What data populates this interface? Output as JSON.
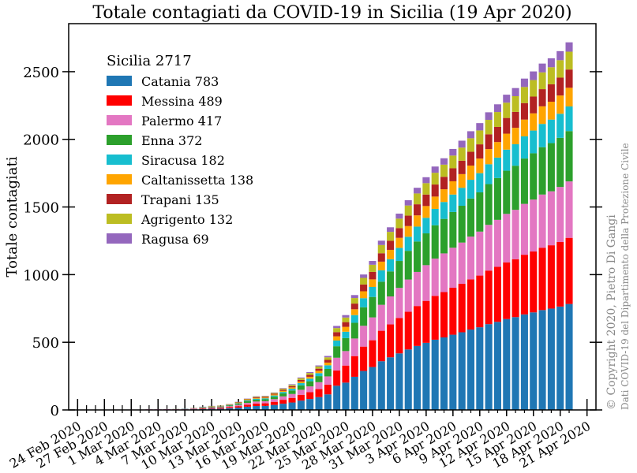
{
  "chart_data": {
    "type": "stacked-bar",
    "title": "Totale contagiati da COVID-19 in Sicilia (19 Apr 2020)",
    "y_label": "Totale contagiati",
    "legend_title": "Sicilia  2717",
    "legend": "upper left",
    "annotations": [
      "© Copyright 2020, Pietro Di Gangi",
      "Dati COVID-19 del Dipartimento della Protezione Civile"
    ],
    "x": [
      "2020-02-24",
      "2020-02-25",
      "2020-02-26",
      "2020-02-27",
      "2020-02-28",
      "2020-02-29",
      "2020-03-01",
      "2020-03-02",
      "2020-03-03",
      "2020-03-04",
      "2020-03-05",
      "2020-03-06",
      "2020-03-07",
      "2020-03-08",
      "2020-03-09",
      "2020-03-10",
      "2020-03-11",
      "2020-03-12",
      "2020-03-13",
      "2020-03-14",
      "2020-03-15",
      "2020-03-16",
      "2020-03-17",
      "2020-03-18",
      "2020-03-19",
      "2020-03-20",
      "2020-03-21",
      "2020-03-22",
      "2020-03-23",
      "2020-03-24",
      "2020-03-25",
      "2020-03-26",
      "2020-03-27",
      "2020-03-28",
      "2020-03-29",
      "2020-03-30",
      "2020-03-31",
      "2020-04-01",
      "2020-04-02",
      "2020-04-03",
      "2020-04-04",
      "2020-04-05",
      "2020-04-06",
      "2020-04-07",
      "2020-04-08",
      "2020-04-09",
      "2020-04-10",
      "2020-04-11",
      "2020-04-12",
      "2020-04-13",
      "2020-04-14",
      "2020-04-15",
      "2020-04-16",
      "2020-04-17",
      "2020-04-18",
      "2020-04-19"
    ],
    "xlim": [
      "2020-02-23",
      "2020-04-22"
    ],
    "xticks": [
      {
        "value": "2020-02-24",
        "label": "24 Feb 2020"
      },
      {
        "value": "2020-02-27",
        "label": "27 Feb 2020"
      },
      {
        "value": "2020-03-01",
        "label": "1 Mar 2020"
      },
      {
        "value": "2020-03-04",
        "label": "4 Mar 2020"
      },
      {
        "value": "2020-03-07",
        "label": "7 Mar 2020"
      },
      {
        "value": "2020-03-10",
        "label": "10 Mar 2020"
      },
      {
        "value": "2020-03-13",
        "label": "13 Mar 2020"
      },
      {
        "value": "2020-03-16",
        "label": "16 Mar 2020"
      },
      {
        "value": "2020-03-19",
        "label": "19 Mar 2020"
      },
      {
        "value": "2020-03-22",
        "label": "22 Mar 2020"
      },
      {
        "value": "2020-03-25",
        "label": "25 Mar 2020"
      },
      {
        "value": "2020-03-28",
        "label": "28 Mar 2020"
      },
      {
        "value": "2020-03-31",
        "label": "31 Mar 2020"
      },
      {
        "value": "2020-04-03",
        "label": "3 Apr 2020"
      },
      {
        "value": "2020-04-06",
        "label": "6 Apr 2020"
      },
      {
        "value": "2020-04-09",
        "label": "9 Apr 2020"
      },
      {
        "value": "2020-04-12",
        "label": "12 Apr 2020"
      },
      {
        "value": "2020-04-15",
        "label": "15 Apr 2020"
      },
      {
        "value": "2020-04-18",
        "label": "18 Apr 2020"
      },
      {
        "value": "2020-04-21",
        "label": "21 Apr 2020"
      }
    ],
    "ylim": [
      0,
      2855
    ],
    "yticks": [
      0,
      500,
      1000,
      1500,
      2000,
      2500
    ],
    "series": [
      {
        "name": "Catania 783",
        "color": "#1f77b4",
        "values": [
          0,
          0,
          0,
          0,
          0,
          0,
          0,
          0,
          2,
          2,
          2,
          3,
          4,
          5,
          7,
          9,
          9,
          13,
          17,
          24,
          29,
          30,
          37,
          46,
          55,
          69,
          81,
          95,
          115,
          179,
          202,
          245,
          288,
          317,
          360,
          389,
          418,
          447,
          473,
          496,
          519,
          536,
          556,
          574,
          594,
          611,
          634,
          651,
          672,
          686,
          706,
          721,
          738,
          749,
          764,
          783
        ]
      },
      {
        "name": "Messina 489",
        "color": "#ff0000",
        "values": [
          0,
          0,
          0,
          0,
          0,
          0,
          0,
          0,
          0,
          0,
          1,
          1,
          1,
          2,
          4,
          5,
          6,
          8,
          11,
          15,
          18,
          19,
          23,
          29,
          34,
          43,
          50,
          59,
          72,
          112,
          126,
          153,
          180,
          198,
          225,
          243,
          261,
          279,
          295,
          310,
          324,
          335,
          347,
          358,
          371,
          382,
          396,
          407,
          419,
          428,
          441,
          450,
          461,
          468,
          477,
          489
        ]
      },
      {
        "name": "Palermo 417",
        "color": "#e377c2",
        "values": [
          0,
          0,
          3,
          3,
          3,
          3,
          3,
          3,
          3,
          3,
          3,
          3,
          3,
          4,
          4,
          5,
          5,
          7,
          9,
          13,
          15,
          16,
          20,
          25,
          29,
          37,
          43,
          51,
          61,
          95,
          107,
          130,
          154,
          169,
          192,
          207,
          223,
          238,
          252,
          264,
          276,
          286,
          296,
          305,
          316,
          325,
          338,
          347,
          358,
          365,
          376,
          384,
          393,
          399,
          407,
          417
        ]
      },
      {
        "name": "Enna 372",
        "color": "#2ca02c",
        "values": [
          0,
          0,
          0,
          0,
          0,
          0,
          0,
          0,
          0,
          0,
          0,
          1,
          1,
          1,
          3,
          4,
          4,
          6,
          8,
          12,
          14,
          14,
          18,
          22,
          26,
          33,
          38,
          45,
          55,
          85,
          96,
          116,
          137,
          151,
          171,
          185,
          199,
          212,
          225,
          235,
          246,
          255,
          264,
          272,
          282,
          290,
          301,
          309,
          319,
          326,
          335,
          342,
          350,
          356,
          363,
          372
        ]
      },
      {
        "name": "Siracusa 182",
        "color": "#17becf",
        "values": [
          0,
          0,
          0,
          0,
          0,
          0,
          0,
          0,
          0,
          0,
          0,
          0,
          1,
          1,
          2,
          2,
          2,
          3,
          4,
          6,
          7,
          7,
          9,
          11,
          13,
          16,
          19,
          22,
          27,
          42,
          47,
          57,
          67,
          74,
          84,
          90,
          97,
          104,
          110,
          115,
          121,
          125,
          129,
          133,
          138,
          142,
          147,
          151,
          156,
          159,
          164,
          168,
          172,
          174,
          178,
          182
        ]
      },
      {
        "name": "Caltanissetta 138",
        "color": "#ffa500",
        "values": [
          0,
          0,
          0,
          0,
          0,
          0,
          0,
          0,
          0,
          0,
          0,
          0,
          0,
          0,
          1,
          2,
          2,
          2,
          3,
          4,
          5,
          5,
          7,
          8,
          10,
          12,
          14,
          17,
          20,
          31,
          36,
          43,
          51,
          56,
          64,
          69,
          74,
          79,
          83,
          87,
          91,
          94,
          98,
          101,
          105,
          108,
          112,
          115,
          118,
          121,
          124,
          127,
          130,
          132,
          135,
          138
        ]
      },
      {
        "name": "Trapani 135",
        "color": "#b22222",
        "values": [
          0,
          0,
          0,
          0,
          0,
          0,
          0,
          0,
          0,
          0,
          0,
          0,
          0,
          1,
          1,
          1,
          2,
          2,
          3,
          4,
          5,
          5,
          6,
          8,
          9,
          12,
          14,
          16,
          20,
          31,
          35,
          42,
          50,
          55,
          62,
          67,
          72,
          77,
          82,
          85,
          89,
          92,
          96,
          99,
          102,
          105,
          109,
          112,
          116,
          118,
          122,
          124,
          127,
          129,
          132,
          135
        ]
      },
      {
        "name": "Agrigento 132",
        "color": "#bcbd22",
        "values": [
          0,
          0,
          0,
          0,
          0,
          0,
          0,
          0,
          0,
          0,
          0,
          0,
          0,
          1,
          1,
          1,
          2,
          2,
          3,
          4,
          5,
          5,
          6,
          8,
          9,
          12,
          14,
          16,
          19,
          30,
          34,
          41,
          49,
          53,
          61,
          66,
          70,
          75,
          80,
          84,
          87,
          90,
          94,
          97,
          100,
          103,
          107,
          110,
          113,
          116,
          119,
          122,
          124,
          126,
          129,
          132
        ]
      },
      {
        "name": "Ragusa 69",
        "color": "#9467bd",
        "values": [
          0,
          0,
          0,
          0,
          0,
          0,
          0,
          0,
          0,
          0,
          0,
          0,
          0,
          0,
          1,
          1,
          1,
          1,
          2,
          2,
          3,
          3,
          3,
          4,
          5,
          6,
          7,
          8,
          10,
          16,
          18,
          22,
          25,
          28,
          32,
          34,
          37,
          39,
          42,
          44,
          46,
          47,
          49,
          51,
          52,
          54,
          56,
          57,
          59,
          60,
          62,
          64,
          65,
          66,
          67,
          69
        ]
      }
    ]
  }
}
